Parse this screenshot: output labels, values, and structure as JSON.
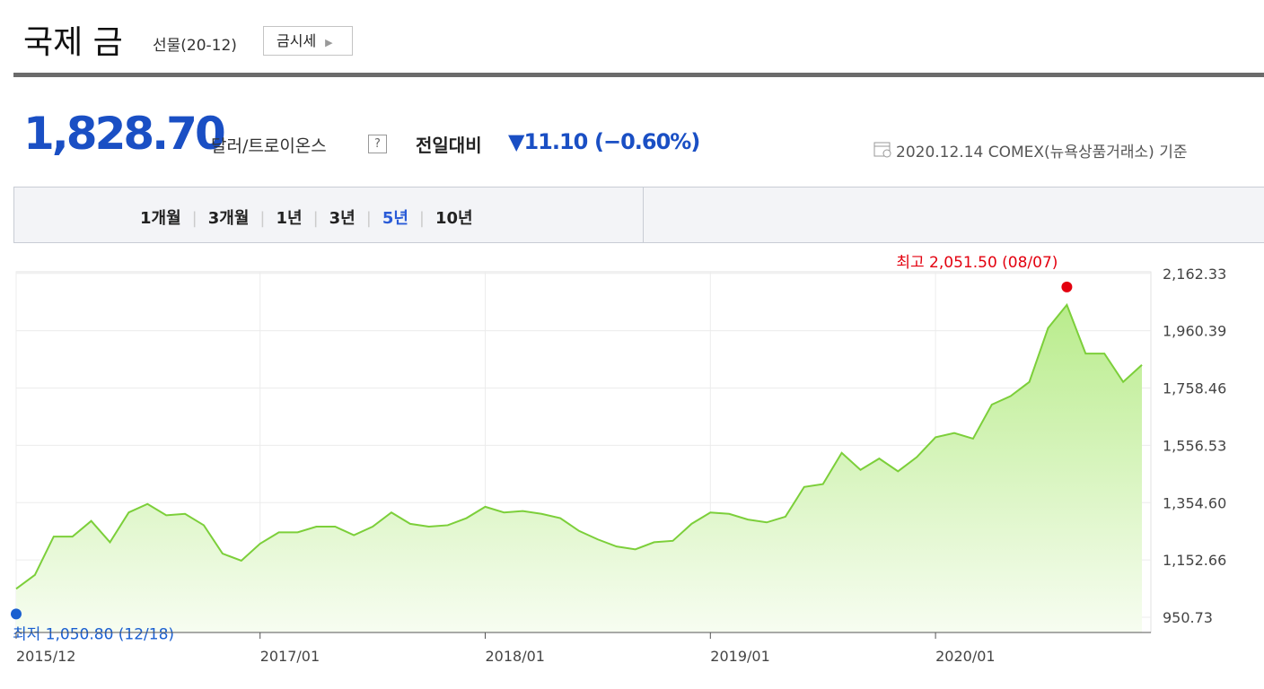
{
  "header": {
    "title": "국제 금",
    "subtitle": "선물(20-12)",
    "button": "금시세"
  },
  "quote": {
    "price": "1,828.70",
    "unit": "달러/트로이온스",
    "help": "?",
    "change_label": "전일대비",
    "change": "▼11.10",
    "change_pct": "(−0.60%)",
    "asof": "2020.12.14 COMEX(뉴욕상품거래소) 기준"
  },
  "tabs": [
    "1개월",
    "3개월",
    "1년",
    "3년",
    "5년",
    "10년"
  ],
  "selected_tab": 4,
  "chart_data": {
    "type": "area",
    "categories": [
      "2015/12",
      null,
      null,
      null,
      null,
      null,
      null,
      null,
      null,
      null,
      null,
      null,
      null,
      "2017/01",
      null,
      null,
      null,
      null,
      null,
      null,
      null,
      null,
      null,
      null,
      null,
      "2018/01",
      null,
      null,
      null,
      null,
      null,
      null,
      null,
      null,
      null,
      null,
      null,
      "2019/01",
      null,
      null,
      null,
      null,
      null,
      null,
      null,
      null,
      null,
      null,
      null,
      "2020/01",
      null,
      null,
      null,
      null,
      null,
      null,
      null,
      null,
      null,
      null,
      null
    ],
    "values": [
      1050.8,
      1100,
      1235,
      1235,
      1290,
      1215,
      1320,
      1350,
      1310,
      1315,
      1275,
      1175,
      1150,
      1210,
      1250,
      1250,
      1270,
      1270,
      1240,
      1270,
      1320,
      1280,
      1270,
      1275,
      1300,
      1340,
      1320,
      1325,
      1315,
      1300,
      1255,
      1225,
      1200,
      1190,
      1215,
      1220,
      1280,
      1320,
      1315,
      1295,
      1285,
      1305,
      1410,
      1420,
      1530,
      1470,
      1510,
      1465,
      1515,
      1585,
      1600,
      1580,
      1700,
      1730,
      1780,
      1970,
      2051.5,
      1880,
      1880,
      1780,
      1840
    ],
    "color": "#7ccf3a",
    "ylim": [
      897,
      2168
    ],
    "yticks": [
      {
        "value": 950.73,
        "label": "950.73"
      },
      {
        "value": 1152.66,
        "label": "1,152.66"
      },
      {
        "value": 1354.6,
        "label": "1,354.60"
      },
      {
        "value": 1556.53,
        "label": "1,556.53"
      },
      {
        "value": 1758.46,
        "label": "1,758.46"
      },
      {
        "value": 1960.39,
        "label": "1,960.39"
      },
      {
        "value": 2162.33,
        "label": "2,162.33"
      }
    ],
    "grid": true,
    "max_label": "최고 2,051.50 (08/07)",
    "max_color": "#e3000f",
    "min_label": "최저 1,050.80 (12/18)",
    "min_color": "#1a5fd0"
  }
}
